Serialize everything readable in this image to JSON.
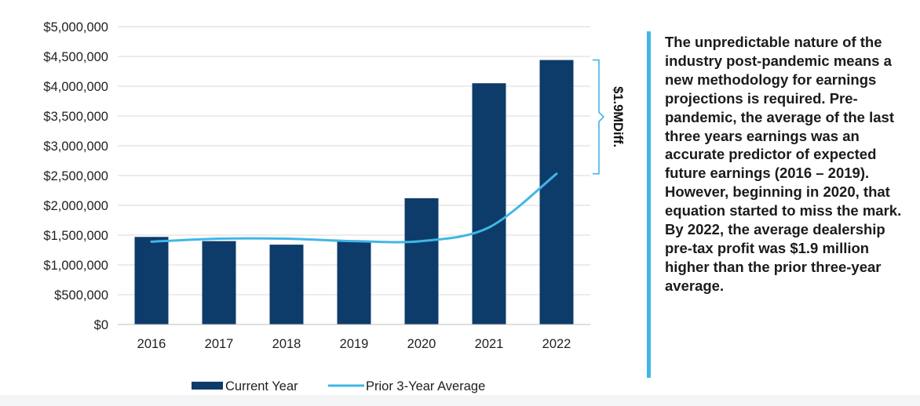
{
  "chart_data": {
    "type": "bar",
    "categories": [
      "2016",
      "2017",
      "2018",
      "2019",
      "2020",
      "2021",
      "2022"
    ],
    "series": [
      {
        "name": "Current Year",
        "type": "bar",
        "color": "#0d3c6a",
        "values": [
          1470000,
          1400000,
          1340000,
          1400000,
          2120000,
          4050000,
          4440000
        ]
      },
      {
        "name": "Prior 3-Year Average",
        "type": "line",
        "color": "#41b6e6",
        "values": [
          1390000,
          1440000,
          1440000,
          1400000,
          1400000,
          1630000,
          2530000
        ]
      }
    ],
    "ylim": [
      0,
      5000000
    ],
    "yticks": [
      0,
      500000,
      1000000,
      1500000,
      2000000,
      2500000,
      3000000,
      3500000,
      4000000,
      4500000,
      5000000
    ],
    "ytick_labels": [
      "$0",
      "$500,000",
      "$1,000,000",
      "$1,500,000",
      "$2,000,000",
      "$2,500,000",
      "$3,000,000",
      "$3,500,000",
      "$4,000,000",
      "$4,500,000",
      "$5,000,000"
    ],
    "grid": true,
    "legend_position": "bottom",
    "annotation": {
      "label": "$1.9MDiff.",
      "category": "2022",
      "from_value": 2530000,
      "to_value": 4440000
    }
  },
  "side_text": "The unpredictable nature of the industry post-pandemic means a new methodology for earnings projections is required. Pre-pandemic, the average of the last three years earnings was an accurate predictor of expected future earnings (2016 – 2019). However, beginning in 2020, that equation started to miss the mark. By 2022, the average dealership pre-tax profit was $1.9 million higher than the prior three-year average.",
  "accent_color": "#41b6e6"
}
